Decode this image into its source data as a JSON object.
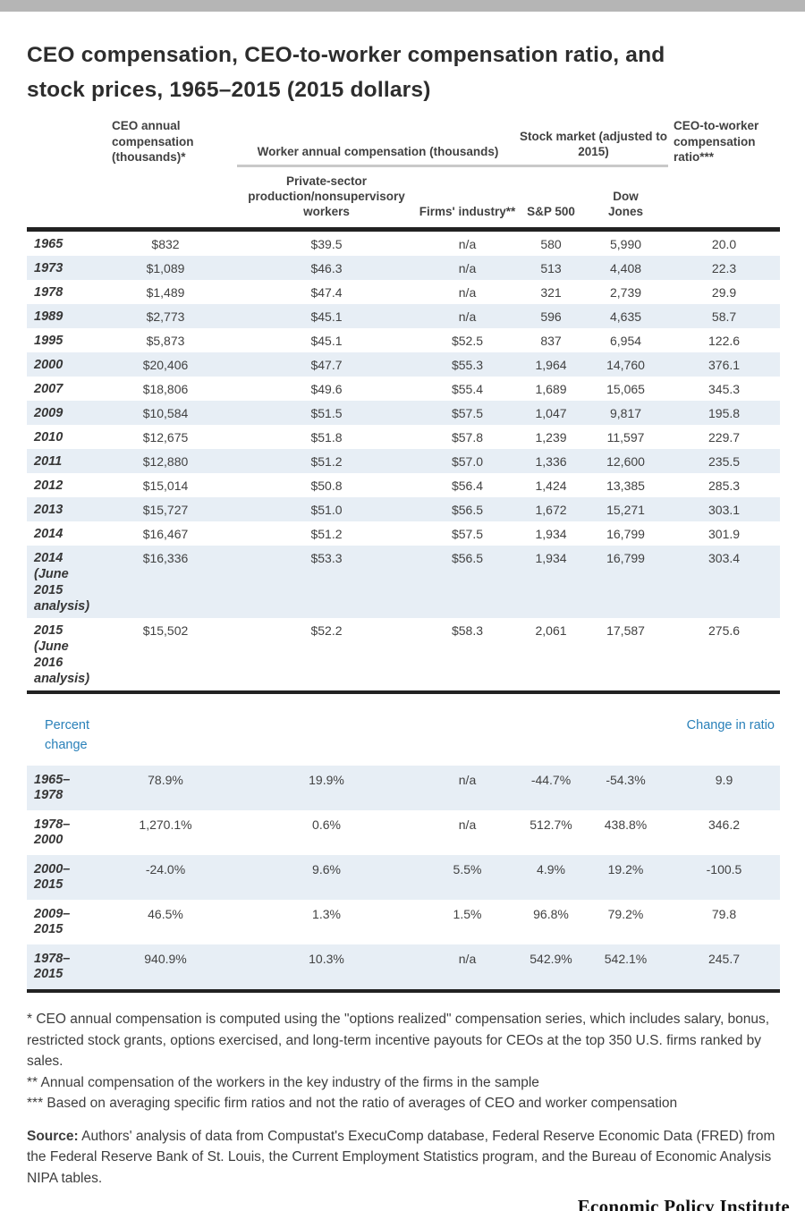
{
  "colors": {
    "accent_blue": "#2980b9",
    "row_stripe": "#e7eef5",
    "rule_dark": "#222222",
    "group_underline": "#c9c9c9",
    "edge_bar_gray": "#b5b5b5"
  },
  "title_line1": "CEO compensation, CEO-to-worker compensation ratio, and",
  "title_line2": "stock prices, 1965–2015 (2015 dollars)",
  "chart_data": {
    "type": "table",
    "title": "CEO compensation, CEO-to-worker compensation ratio, and stock prices, 1965–2015 (2015 dollars)",
    "columns": {
      "ceo": "CEO annual compensation (thousands)*",
      "worker_group": "Worker annual compensation (thousands)",
      "worker_private": "Private-sector production/nonsupervisory workers",
      "worker_firms": "Firms' industry**",
      "stock_group": "Stock market (adjusted to 2015)",
      "sp500": "S&P 500",
      "dow": "Dow Jones",
      "ratio": "CEO-to-worker compensation ratio***"
    },
    "rows": [
      {
        "label": "1965",
        "values": [
          "$832",
          "$39.5",
          "n/a",
          "580",
          "5,990",
          "20.0"
        ]
      },
      {
        "label": "1973",
        "values": [
          "$1,089",
          "$46.3",
          "n/a",
          "513",
          "4,408",
          "22.3"
        ]
      },
      {
        "label": "1978",
        "values": [
          "$1,489",
          "$47.4",
          "n/a",
          "321",
          "2,739",
          "29.9"
        ]
      },
      {
        "label": "1989",
        "values": [
          "$2,773",
          "$45.1",
          "n/a",
          "596",
          "4,635",
          "58.7"
        ]
      },
      {
        "label": "1995",
        "values": [
          "$5,873",
          "$45.1",
          "$52.5",
          "837",
          "6,954",
          "122.6"
        ]
      },
      {
        "label": "2000",
        "values": [
          "$20,406",
          "$47.7",
          "$55.3",
          "1,964",
          "14,760",
          "376.1"
        ]
      },
      {
        "label": "2007",
        "values": [
          "$18,806",
          "$49.6",
          "$55.4",
          "1,689",
          "15,065",
          "345.3"
        ]
      },
      {
        "label": "2009",
        "values": [
          "$10,584",
          "$51.5",
          "$57.5",
          "1,047",
          "9,817",
          "195.8"
        ]
      },
      {
        "label": "2010",
        "values": [
          "$12,675",
          "$51.8",
          "$57.8",
          "1,239",
          "11,597",
          "229.7"
        ]
      },
      {
        "label": "2011",
        "values": [
          "$12,880",
          "$51.2",
          "$57.0",
          "1,336",
          "12,600",
          "235.5"
        ]
      },
      {
        "label": "2012",
        "values": [
          "$15,014",
          "$50.8",
          "$56.4",
          "1,424",
          "13,385",
          "285.3"
        ]
      },
      {
        "label": "2013",
        "values": [
          "$15,727",
          "$51.0",
          "$56.5",
          "1,672",
          "15,271",
          "303.1"
        ]
      },
      {
        "label": "2014",
        "values": [
          "$16,467",
          "$51.2",
          "$57.5",
          "1,934",
          "16,799",
          "301.9"
        ]
      },
      {
        "label": "2014 (June 2015 analysis)",
        "values": [
          "$16,336",
          "$53.3",
          "$56.5",
          "1,934",
          "16,799",
          "303.4"
        ]
      },
      {
        "label": "2015 (June 2016 analysis)",
        "values": [
          "$15,502",
          "$52.2",
          "$58.3",
          "2,061",
          "17,587",
          "275.6"
        ]
      }
    ],
    "percent_section": {
      "left_label": "Percent change",
      "right_label": "Change in ratio",
      "rows": [
        {
          "label": "1965–1978",
          "values": [
            "78.9%",
            "19.9%",
            "n/a",
            "-44.7%",
            "-54.3%",
            "9.9"
          ]
        },
        {
          "label": "1978–2000",
          "values": [
            "1,270.1%",
            "0.6%",
            "n/a",
            "512.7%",
            "438.8%",
            "346.2"
          ]
        },
        {
          "label": "2000–2015",
          "values": [
            "-24.0%",
            "9.6%",
            "5.5%",
            "4.9%",
            "19.2%",
            "-100.5"
          ]
        },
        {
          "label": "2009–2015",
          "values": [
            "46.5%",
            "1.3%",
            "1.5%",
            "96.8%",
            "79.2%",
            "79.8"
          ]
        },
        {
          "label": "1978–2015",
          "values": [
            "940.9%",
            "10.3%",
            "n/a",
            "542.9%",
            "542.1%",
            "245.7"
          ]
        }
      ]
    }
  },
  "footnotes": [
    "* CEO annual compensation is computed using the \"options realized\" compensation series, which includes salary, bonus, restricted stock grants, options exercised, and long-term incentive payouts for CEOs at the top 350 U.S. firms ranked by sales.",
    "** Annual compensation of the workers in the key industry of the firms in the sample",
    "*** Based on averaging specific firm ratios and not the ratio of averages of CEO and worker compensation"
  ],
  "source": {
    "label": "Source:",
    "text": " Authors' analysis of data from Compustat's ExecuComp database, Federal Reserve Economic Data (FRED) from the Federal Reserve Bank of St. Louis, the Current Employment Statistics program, and the Bureau of Economic Analysis NIPA tables."
  },
  "branding": "Economic Policy Institute"
}
